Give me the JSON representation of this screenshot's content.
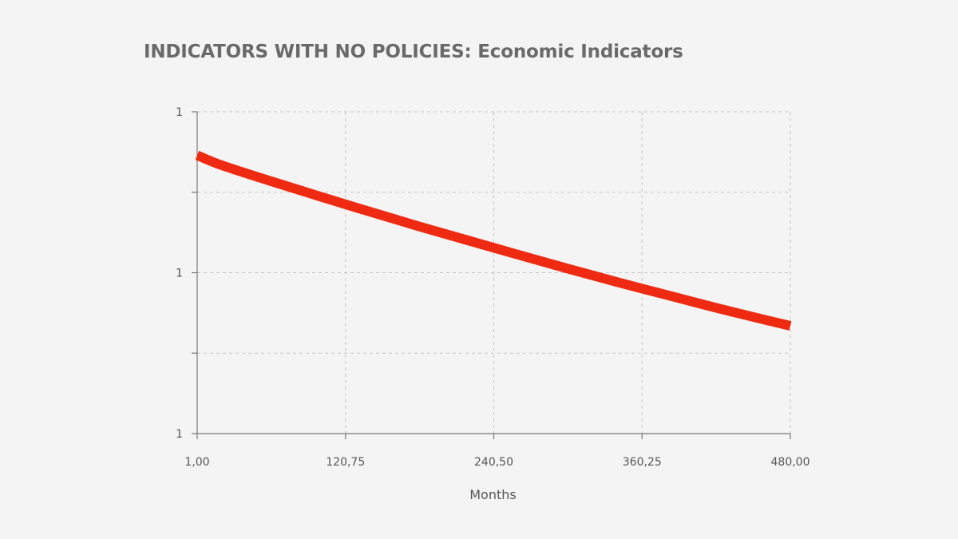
{
  "chart_data": {
    "type": "line",
    "title": "INDICATORS WITH NO POLICIES: Economic Indicators",
    "xlabel": "Months",
    "ylabel": "",
    "xlim": [
      1,
      480
    ],
    "x_ticks": [
      1,
      120.75,
      240.5,
      360.25,
      480
    ],
    "x_tick_labels": [
      "1,00",
      "120,75",
      "240,50",
      "360,25",
      "480,00"
    ],
    "y_tick_labels": [
      "1",
      "1",
      "1"
    ],
    "y_ticks_frac": [
      1,
      0.5,
      0
    ],
    "y_minor_grid_frac": [
      0.75,
      0.25
    ],
    "grid": true,
    "grid_style": "dashed",
    "series": [
      {
        "color": "#ee2a12",
        "x": [
          1,
          20,
          60,
          100,
          140,
          180,
          220,
          260,
          300,
          340,
          380,
          420,
          460,
          480
        ],
        "y_frac": [
          0.865,
          0.835,
          0.785,
          0.737,
          0.69,
          0.644,
          0.6,
          0.556,
          0.513,
          0.471,
          0.431,
          0.391,
          0.353,
          0.335
        ]
      }
    ]
  }
}
